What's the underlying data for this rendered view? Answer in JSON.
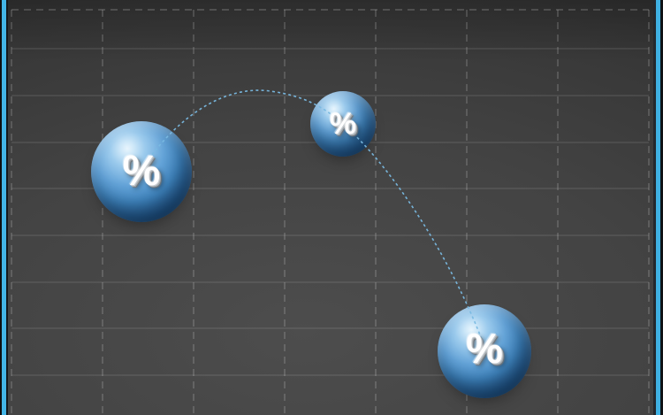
{
  "diagram": {
    "nodes": [
      {
        "id": "percent-sphere-1",
        "label": "%",
        "size": "large"
      },
      {
        "id": "percent-sphere-2",
        "label": "%",
        "size": "small"
      },
      {
        "id": "percent-sphere-3",
        "label": "%",
        "size": "large"
      }
    ],
    "connector": {
      "style": "dashed-curve",
      "color": "#79b9e2"
    }
  },
  "theme": {
    "background": "#434343",
    "accent_bar": "#43b5e7",
    "grid_line": "#5a5a5a",
    "sphere_base": "#4288c2",
    "sphere_highlight": "#cde7f8",
    "sphere_shadow": "#102f50",
    "label_color": "#ffffff"
  }
}
